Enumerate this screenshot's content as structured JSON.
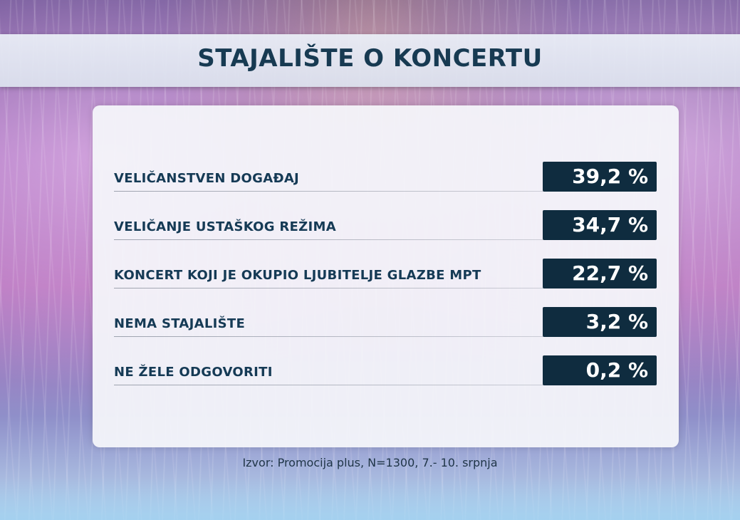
{
  "title": "STAJALIŠTE O KONCERTU",
  "source": "Izvor: Promocija plus, N=1300, 7.- 10. srpnja",
  "chart_data": {
    "type": "table",
    "title": "STAJALIŠTE O KONCERTU",
    "categories": [
      "VELIČANSTVEN DOGAĐAJ",
      "VELIČANJE USTAŠKOG REŽIMA",
      "KONCERT KOJI JE OKUPIO LJUBITELJE GLAZBE MPT",
      "NEMA STAJALIŠTE",
      "NE ŽELE ODGOVORITI"
    ],
    "values": [
      39.2,
      34.7,
      22.7,
      3.2,
      0.2
    ],
    "value_labels": [
      "39,2 %",
      "34,7 %",
      "22,7 %",
      "3,2 %",
      "0,2 %"
    ],
    "source": "Izvor: Promocija plus, N=1300, 7.- 10. srpnja"
  },
  "colors": {
    "title_text": "#173a52",
    "value_box": "#0f2c3f",
    "label_text": "#153a55"
  }
}
